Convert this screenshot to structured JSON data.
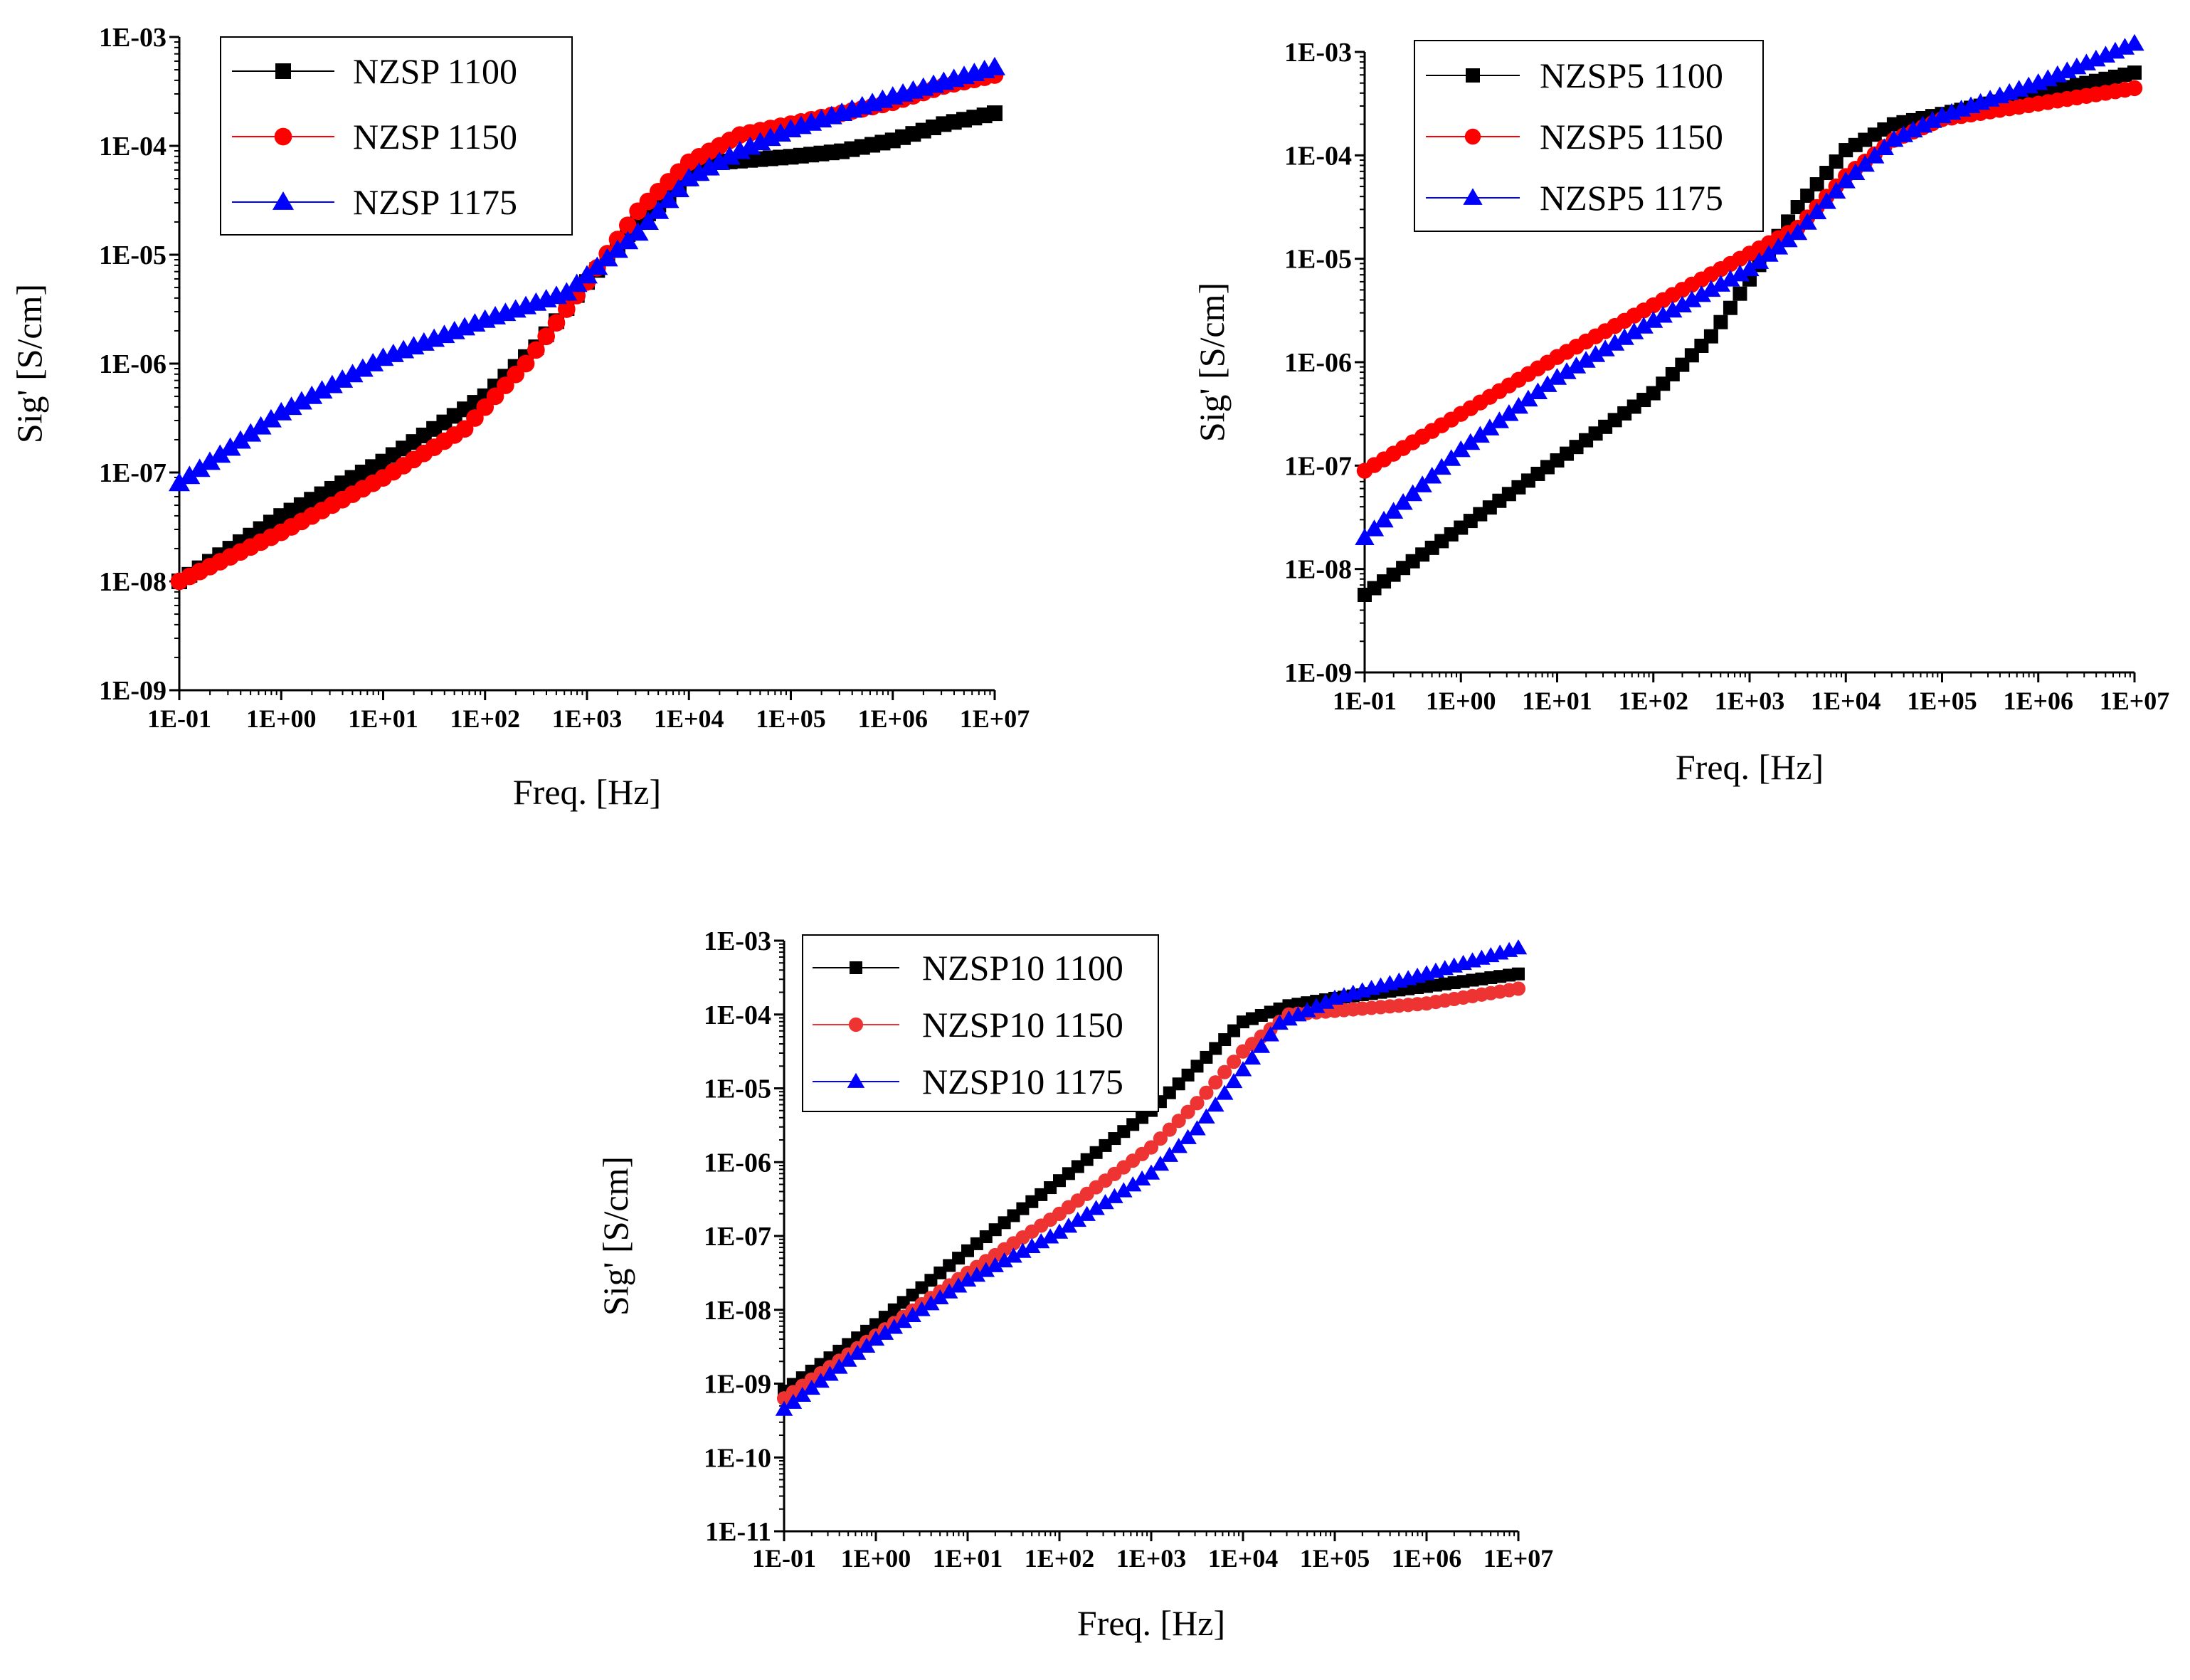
{
  "chart_data": [
    {
      "type": "scatter",
      "id": "nzsp",
      "xlabel": "Freq. [Hz]",
      "ylabel": "Sig' [S/cm]",
      "xscale": "log",
      "yscale": "log",
      "xlim": [
        0.1,
        10000000
      ],
      "ylim": [
        1e-09,
        0.001
      ],
      "x_ticks": [
        "1E-01",
        "1E+00",
        "1E+01",
        "1E+02",
        "1E+03",
        "1E+04",
        "1E+05",
        "1E+06",
        "1E+07"
      ],
      "y_ticks": [
        "1E-09",
        "1E-08",
        "1E-07",
        "1E-06",
        "1E-05",
        "1E-04",
        "1E-03"
      ],
      "legend_position": "top-left",
      "series": [
        {
          "name": "NZSP 1100",
          "color": "#000000",
          "marker": "square",
          "points_log": [
            [
              -1,
              -8.0
            ],
            [
              0,
              -7.4
            ],
            [
              1,
              -6.9
            ],
            [
              2,
              -6.3
            ],
            [
              2.5,
              -5.85
            ],
            [
              3,
              -5.25
            ],
            [
              3.5,
              -4.7
            ],
            [
              4,
              -4.3
            ],
            [
              4.3,
              -4.15
            ],
            [
              5,
              -4.1
            ],
            [
              5.5,
              -4.05
            ],
            [
              6,
              -3.95
            ],
            [
              6.5,
              -3.8
            ],
            [
              7,
              -3.7
            ]
          ]
        },
        {
          "name": "NZSP 1150",
          "color": "#ff0000",
          "marker": "circle",
          "points_log": [
            [
              -1,
              -8.0
            ],
            [
              0,
              -7.55
            ],
            [
              1,
              -7.05
            ],
            [
              1.8,
              -6.6
            ],
            [
              2.4,
              -6.0
            ],
            [
              3,
              -5.25
            ],
            [
              3.5,
              -4.6
            ],
            [
              4,
              -4.15
            ],
            [
              4.5,
              -3.9
            ],
            [
              5,
              -3.8
            ],
            [
              5.5,
              -3.7
            ],
            [
              6,
              -3.6
            ],
            [
              6.5,
              -3.45
            ],
            [
              7,
              -3.35
            ]
          ]
        },
        {
          "name": "NZSP 1175",
          "color": "#0000ff",
          "marker": "triangle",
          "points_log": [
            [
              -1,
              -7.1
            ],
            [
              0,
              -6.45
            ],
            [
              1,
              -5.95
            ],
            [
              2,
              -5.6
            ],
            [
              2.8,
              -5.35
            ],
            [
              3.5,
              -4.8
            ],
            [
              4,
              -4.3
            ],
            [
              4.5,
              -4.05
            ],
            [
              5,
              -3.85
            ],
            [
              6,
              -3.55
            ],
            [
              7,
              -3.28
            ]
          ]
        }
      ]
    },
    {
      "type": "scatter",
      "id": "nzsp5",
      "xlabel": "Freq. [Hz]",
      "ylabel": "Sig' [S/cm]",
      "xscale": "log",
      "yscale": "log",
      "xlim": [
        0.1,
        10000000
      ],
      "ylim": [
        1e-09,
        0.001
      ],
      "x_ticks": [
        "1E-01",
        "1E+00",
        "1E+01",
        "1E+02",
        "1E+03",
        "1E+04",
        "1E+05",
        "1E+06",
        "1E+07"
      ],
      "y_ticks": [
        "1E-09",
        "1E-08",
        "1E-07",
        "1E-06",
        "1E-05",
        "1E-04",
        "1E-03"
      ],
      "legend_position": "top-left",
      "series": [
        {
          "name": "NZSP5 1100",
          "color": "#000000",
          "marker": "square",
          "points_log": [
            [
              -1,
              -8.25
            ],
            [
              0,
              -7.6
            ],
            [
              1,
              -6.95
            ],
            [
              2,
              -6.3
            ],
            [
              2.6,
              -5.75
            ],
            [
              3,
              -5.2
            ],
            [
              3.5,
              -4.5
            ],
            [
              4,
              -3.95
            ],
            [
              4.5,
              -3.7
            ],
            [
              5,
              -3.6
            ],
            [
              6,
              -3.4
            ],
            [
              7,
              -3.2
            ]
          ]
        },
        {
          "name": "NZSP5 1150",
          "color": "#ff0000",
          "marker": "circle",
          "points_log": [
            [
              -1,
              -7.05
            ],
            [
              0,
              -6.5
            ],
            [
              1,
              -5.95
            ],
            [
              2,
              -5.45
            ],
            [
              3,
              -4.95
            ],
            [
              3.5,
              -4.7
            ],
            [
              4,
              -4.2
            ],
            [
              4.5,
              -3.85
            ],
            [
              5,
              -3.65
            ],
            [
              6,
              -3.5
            ],
            [
              7,
              -3.35
            ]
          ]
        },
        {
          "name": "NZSP5 1175",
          "color": "#0000ff",
          "marker": "triangle",
          "points_log": [
            [
              -1,
              -7.7
            ],
            [
              0,
              -6.85
            ],
            [
              1,
              -6.15
            ],
            [
              2,
              -5.6
            ],
            [
              3,
              -5.1
            ],
            [
              3.5,
              -4.75
            ],
            [
              4,
              -4.25
            ],
            [
              4.5,
              -3.85
            ],
            [
              5,
              -3.62
            ],
            [
              6,
              -3.3
            ],
            [
              7,
              -2.92
            ]
          ]
        }
      ]
    },
    {
      "type": "scatter",
      "id": "nzsp10",
      "xlabel": "Freq. [Hz]",
      "ylabel": "Sig' [S/cm]",
      "xscale": "log",
      "yscale": "log",
      "xlim": [
        0.1,
        10000000
      ],
      "ylim": [
        1e-11,
        0.001
      ],
      "x_ticks": [
        "1E-01",
        "1E+00",
        "1E+01",
        "1E+02",
        "1E+03",
        "1E+04",
        "1E+05",
        "1E+06",
        "1E+07"
      ],
      "y_ticks": [
        "1E-11",
        "1E-10",
        "1E-09",
        "1E-08",
        "1E-07",
        "1E-06",
        "1E-05",
        "1E-04",
        "1E-03"
      ],
      "legend_position": "top-left",
      "series": [
        {
          "name": "NZSP10 1100",
          "color": "#000000",
          "marker": "square",
          "points_log": [
            [
              -1,
              -9.1
            ],
            [
              0,
              -8.2
            ],
            [
              1,
              -7.2
            ],
            [
              2,
              -6.25
            ],
            [
              3,
              -5.3
            ],
            [
              3.5,
              -4.7
            ],
            [
              4,
              -4.1
            ],
            [
              4.5,
              -3.88
            ],
            [
              5,
              -3.78
            ],
            [
              6,
              -3.62
            ],
            [
              7,
              -3.45
            ]
          ]
        },
        {
          "name": "NZSP10 1150",
          "color": "#ee3333",
          "marker": "circle",
          "points_log": [
            [
              -1,
              -9.2
            ],
            [
              0,
              -8.35
            ],
            [
              1,
              -7.5
            ],
            [
              2,
              -6.7
            ],
            [
              3,
              -5.8
            ],
            [
              3.5,
              -5.2
            ],
            [
              4,
              -4.5
            ],
            [
              4.5,
              -4.0
            ],
            [
              5,
              -3.95
            ],
            [
              6,
              -3.85
            ],
            [
              7,
              -3.65
            ]
          ]
        },
        {
          "name": "NZSP10 1175",
          "color": "#0000ff",
          "marker": "triangle",
          "points_log": [
            [
              -1,
              -9.35
            ],
            [
              0,
              -8.4
            ],
            [
              1,
              -7.6
            ],
            [
              2,
              -6.95
            ],
            [
              3,
              -6.15
            ],
            [
              3.5,
              -5.55
            ],
            [
              4,
              -4.75
            ],
            [
              4.4,
              -4.12
            ],
            [
              5,
              -3.78
            ],
            [
              6,
              -3.45
            ],
            [
              7,
              -3.1
            ]
          ]
        }
      ]
    }
  ]
}
